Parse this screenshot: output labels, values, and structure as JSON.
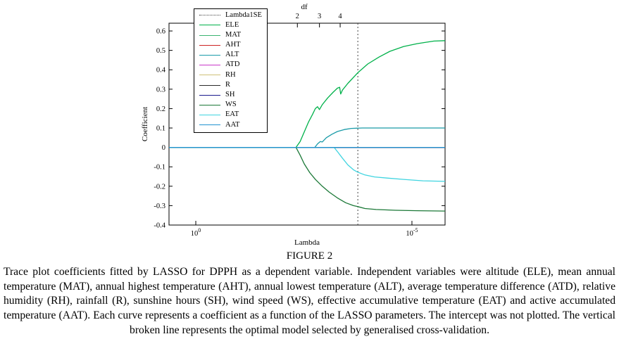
{
  "figure": {
    "caption_label": "FIGURE 2",
    "caption_text": "Trace plot coefficients fitted by LASSO for DPPH as a dependent variable. Independent variables were altitude (ELE), mean annual temperature (MAT), annual highest temperature (AHT), annual lowest temperature (ALT), average temperature difference (ATD), relative humidity (RH), rainfall (R), sunshine hours (SH), wind speed (WS), effective accumulative temperature (EAT) and active accumulated temperature (AAT). Each curve represents a coefficient as a function of the LASSO parameters. The intercept was not plotted. The vertical broken line represents the optimal model selected by generalised cross-validation."
  },
  "chart_data": {
    "type": "line",
    "title": "",
    "xlabel": "Lambda",
    "ylabel": "Coefficient",
    "x_scale": "log",
    "grid": false,
    "legend_position": "top-left",
    "ylim": [
      -0.4,
      0.64
    ],
    "y_ticks": [
      0.6,
      0.5,
      0.4,
      0.3,
      0.2,
      0.1,
      0,
      -0.1,
      -0.2,
      -0.3,
      -0.4
    ],
    "x_ticks": [
      {
        "pos": 0.097,
        "base": "10",
        "exp": "0"
      },
      {
        "pos": 0.88,
        "base": "10",
        "exp": "-5"
      }
    ],
    "top_axis": {
      "label": "df",
      "label_pos": 0.49,
      "ticks": [
        {
          "pos": 0.465,
          "label": "2"
        },
        {
          "pos": 0.545,
          "label": "3"
        },
        {
          "pos": 0.62,
          "label": "4"
        }
      ]
    },
    "vline": {
      "pos": 0.684,
      "label": "Lambda1SE",
      "style": "dotted"
    },
    "legend": [
      {
        "label": "Lambda1SE",
        "color": "#444444",
        "dash": "dot"
      },
      {
        "label": "ELE",
        "color": "#00b14a",
        "dash": "solid"
      },
      {
        "label": "MAT",
        "color": "#3cb371",
        "dash": "solid"
      },
      {
        "label": "AHT",
        "color": "#cc2222",
        "dash": "solid"
      },
      {
        "label": "ALT",
        "color": "#1a9ba8",
        "dash": "solid"
      },
      {
        "label": "ATD",
        "color": "#c837c8",
        "dash": "solid"
      },
      {
        "label": "RH",
        "color": "#cfc178",
        "dash": "solid"
      },
      {
        "label": "R",
        "color": "#2b2b2b",
        "dash": "solid"
      },
      {
        "label": "SH",
        "color": "#1a1a8c",
        "dash": "solid"
      },
      {
        "label": "WS",
        "color": "#1b7837",
        "dash": "solid"
      },
      {
        "label": "EAT",
        "color": "#3fd4e0",
        "dash": "solid"
      },
      {
        "label": "AAT",
        "color": "#2093d0",
        "dash": "solid"
      }
    ],
    "series": [
      {
        "name": "ELE",
        "points": [
          [
            0,
            0
          ],
          [
            0.46,
            0
          ],
          [
            0.475,
            0.03
          ],
          [
            0.49,
            0.08
          ],
          [
            0.505,
            0.13
          ],
          [
            0.52,
            0.17
          ],
          [
            0.53,
            0.2
          ],
          [
            0.538,
            0.21
          ],
          [
            0.545,
            0.195
          ],
          [
            0.555,
            0.22
          ],
          [
            0.575,
            0.255
          ],
          [
            0.595,
            0.285
          ],
          [
            0.61,
            0.305
          ],
          [
            0.618,
            0.31
          ],
          [
            0.622,
            0.275
          ],
          [
            0.628,
            0.295
          ],
          [
            0.648,
            0.33
          ],
          [
            0.684,
            0.385
          ],
          [
            0.72,
            0.43
          ],
          [
            0.76,
            0.465
          ],
          [
            0.8,
            0.495
          ],
          [
            0.85,
            0.52
          ],
          [
            0.9,
            0.535
          ],
          [
            0.96,
            0.548
          ],
          [
            1,
            0.55
          ]
        ]
      },
      {
        "name": "MAT",
        "points": [
          [
            0,
            0
          ],
          [
            1,
            0
          ]
        ]
      },
      {
        "name": "AHT",
        "points": [
          [
            0,
            0
          ],
          [
            1,
            0
          ]
        ]
      },
      {
        "name": "ALT",
        "points": [
          [
            0,
            0
          ],
          [
            0.528,
            0
          ],
          [
            0.538,
            0.018
          ],
          [
            0.548,
            0.03
          ],
          [
            0.555,
            0.028
          ],
          [
            0.57,
            0.05
          ],
          [
            0.59,
            0.068
          ],
          [
            0.61,
            0.082
          ],
          [
            0.635,
            0.092
          ],
          [
            0.66,
            0.098
          ],
          [
            0.7,
            0.1
          ],
          [
            1,
            0.1
          ]
        ]
      },
      {
        "name": "ATD",
        "points": [
          [
            0,
            0
          ],
          [
            1,
            0
          ]
        ]
      },
      {
        "name": "RH",
        "points": [
          [
            0,
            0
          ],
          [
            1,
            0
          ]
        ]
      },
      {
        "name": "R",
        "points": [
          [
            0,
            0
          ],
          [
            1,
            0
          ]
        ]
      },
      {
        "name": "SH",
        "points": [
          [
            0,
            0
          ],
          [
            1,
            0
          ]
        ]
      },
      {
        "name": "WS",
        "points": [
          [
            0,
            0
          ],
          [
            0.46,
            0
          ],
          [
            0.475,
            -0.04
          ],
          [
            0.49,
            -0.085
          ],
          [
            0.51,
            -0.13
          ],
          [
            0.53,
            -0.165
          ],
          [
            0.555,
            -0.2
          ],
          [
            0.58,
            -0.23
          ],
          [
            0.61,
            -0.26
          ],
          [
            0.64,
            -0.285
          ],
          [
            0.668,
            -0.3
          ],
          [
            0.684,
            -0.305
          ],
          [
            0.71,
            -0.315
          ],
          [
            0.75,
            -0.32
          ],
          [
            0.82,
            -0.324
          ],
          [
            0.9,
            -0.326
          ],
          [
            1,
            -0.328
          ]
        ]
      },
      {
        "name": "EAT",
        "points": [
          [
            0,
            0
          ],
          [
            0.598,
            0
          ],
          [
            0.612,
            -0.025
          ],
          [
            0.628,
            -0.055
          ],
          [
            0.648,
            -0.09
          ],
          [
            0.668,
            -0.115
          ],
          [
            0.684,
            -0.128
          ],
          [
            0.71,
            -0.142
          ],
          [
            0.745,
            -0.152
          ],
          [
            0.79,
            -0.158
          ],
          [
            0.85,
            -0.165
          ],
          [
            0.92,
            -0.172
          ],
          [
            1,
            -0.175
          ]
        ]
      },
      {
        "name": "AAT",
        "points": [
          [
            0,
            0
          ],
          [
            1,
            0
          ]
        ]
      }
    ]
  }
}
